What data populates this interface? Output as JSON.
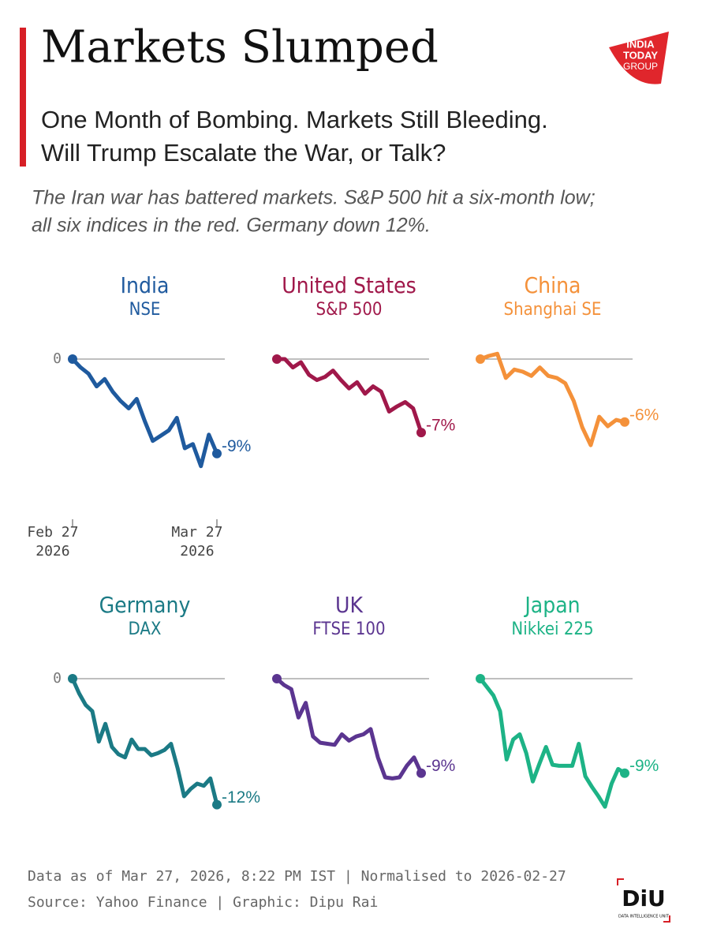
{
  "header": {
    "title": "Markets Slumped",
    "subtitle_lines": [
      "One Month of Bombing. Markets Still Bleeding.",
      "Will Trump Escalate the War, or Talk?"
    ],
    "description_lines": [
      "The Iran war has battered markets. S&P 500 hit a six-month low;",
      "all six indices in the red. Germany down 12%."
    ],
    "logo_lines": [
      "INDIA",
      "TODAY",
      "GROUP"
    ]
  },
  "chart_data": [
    {
      "type": "line",
      "title": "India",
      "subtitle": "NSE",
      "color": "#1f5a9e",
      "categories": [
        "Feb 27 2026",
        null,
        null,
        null,
        null,
        null,
        null,
        null,
        null,
        null,
        null,
        null,
        null,
        null,
        null,
        null,
        null,
        null,
        "Mar 27 2026"
      ],
      "values": [
        0,
        -0.8,
        -1.4,
        -2.6,
        -1.9,
        -3.1,
        -4.0,
        -4.7,
        -3.8,
        -5.9,
        -7.8,
        -7.3,
        -6.8,
        -5.6,
        -8.5,
        -8.1,
        -10.2,
        -7.2,
        -9
      ],
      "value_labels": [
        null,
        null,
        null,
        null,
        null,
        null,
        null,
        null,
        null,
        null,
        null,
        null,
        null,
        null,
        null,
        null,
        null,
        null,
        "-9%"
      ],
      "ylim": [
        -13,
        1
      ],
      "yticks": [
        0
      ],
      "ytick_labels": true,
      "grid": true
    },
    {
      "type": "line",
      "title": "United States",
      "subtitle": "S&P 500",
      "color": "#a0184a",
      "values": [
        0,
        0,
        -0.8,
        -0.3,
        -1.5,
        -2.0,
        -1.7,
        -1.1,
        -2.0,
        -2.8,
        -2.2,
        -3.3,
        -2.6,
        -3.1,
        -5.0,
        -4.5,
        -4.1,
        -4.7,
        -7
      ],
      "value_labels": [
        null,
        null,
        null,
        null,
        null,
        null,
        null,
        null,
        null,
        null,
        null,
        null,
        null,
        null,
        null,
        null,
        null,
        null,
        "-7%"
      ],
      "ylim": [
        -13,
        1
      ],
      "yticks": [
        0
      ],
      "ytick_labels": false,
      "grid": true
    },
    {
      "type": "line",
      "title": "China",
      "subtitle": "Shanghai SE",
      "color": "#f4913a",
      "values": [
        0,
        0.3,
        0.5,
        -1.8,
        -1.0,
        -1.2,
        -1.6,
        -0.8,
        -1.6,
        -1.8,
        -2.3,
        -4.0,
        -6.5,
        -8.2,
        -5.5,
        -6.4,
        -5.8,
        -6
      ],
      "value_labels": [
        null,
        null,
        null,
        null,
        null,
        null,
        null,
        null,
        null,
        null,
        null,
        null,
        null,
        null,
        null,
        null,
        null,
        "-6%"
      ],
      "ylim": [
        -13,
        1
      ],
      "yticks": [
        0
      ],
      "ytick_labels": false,
      "grid": true
    },
    {
      "type": "line",
      "title": "Germany",
      "subtitle": "DAX",
      "color": "#1b7a85",
      "values": [
        0,
        -1.4,
        -2.5,
        -3.1,
        -6.0,
        -4.3,
        -6.5,
        -7.2,
        -7.5,
        -5.8,
        -6.7,
        -6.7,
        -7.3,
        -7.1,
        -6.8,
        -6.2,
        -8.5,
        -11.2,
        -10.5,
        -10.0,
        -10.2,
        -9.5,
        -12
      ],
      "value_labels": [
        null,
        null,
        null,
        null,
        null,
        null,
        null,
        null,
        null,
        null,
        null,
        null,
        null,
        null,
        null,
        null,
        null,
        null,
        null,
        null,
        null,
        null,
        "-12%"
      ],
      "ylim": [
        -13,
        1
      ],
      "yticks": [
        0
      ],
      "ytick_labels": true,
      "grid": true
    },
    {
      "type": "line",
      "title": "UK",
      "subtitle": "FTSE 100",
      "color": "#5b3590",
      "values": [
        0,
        -0.6,
        -1.0,
        -3.7,
        -2.3,
        -5.5,
        -6.1,
        -6.2,
        -6.3,
        -5.3,
        -5.9,
        -5.5,
        -5.3,
        -4.8,
        -7.5,
        -9.4,
        -9.5,
        -9.4,
        -8.3,
        -7.5,
        -9
      ],
      "value_labels": [
        null,
        null,
        null,
        null,
        null,
        null,
        null,
        null,
        null,
        null,
        null,
        null,
        null,
        null,
        null,
        null,
        null,
        null,
        null,
        null,
        "-9%"
      ],
      "ylim": [
        -13,
        1
      ],
      "yticks": [
        0
      ],
      "ytick_labels": false,
      "grid": true
    },
    {
      "type": "line",
      "title": "Japan",
      "subtitle": "Nikkei 225",
      "color": "#1db386",
      "values": [
        0,
        -0.8,
        -1.6,
        -3.1,
        -7.7,
        -5.8,
        -5.3,
        -7.1,
        -9.8,
        -8.1,
        -6.5,
        -8.2,
        -8.3,
        -8.3,
        -8.3,
        -6.2,
        -9.3,
        -10.3,
        -11.2,
        -12.2,
        -10.0,
        -8.6,
        -9
      ],
      "value_labels": [
        null,
        null,
        null,
        null,
        null,
        null,
        null,
        null,
        null,
        null,
        null,
        null,
        null,
        null,
        null,
        null,
        null,
        null,
        null,
        null,
        null,
        null,
        "-9%"
      ],
      "ylim": [
        -13,
        1
      ],
      "yticks": [
        0
      ],
      "ytick_labels": false,
      "grid": true
    }
  ],
  "footer": {
    "lines": [
      "Data as of Mar 27, 2026, 8:22 PM IST | Normalised to 2026-02-27",
      "Source: Yahoo Finance | Graphic: Dipu Rai"
    ],
    "diu_mark": "DiU",
    "diu_caption": "DATA INTELLIGENCE UNIT"
  }
}
